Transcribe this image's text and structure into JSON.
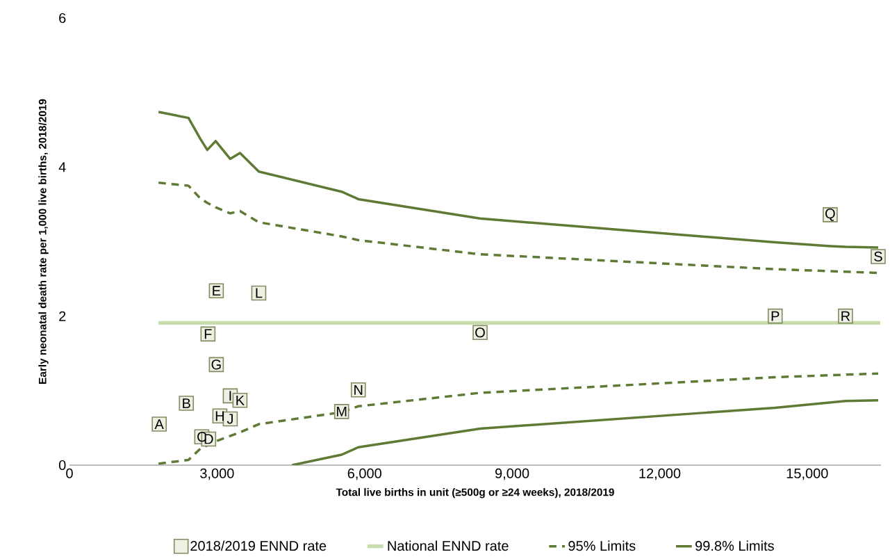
{
  "chart_data": {
    "type": "scatter",
    "xlabel": "Total live births in unit (≥500g or ≥24 weeks), 2018/2019",
    "ylabel": "Early neonatal death rate per 1,000 live births, 2018/2019",
    "xlim": [
      0,
      16500
    ],
    "ylim": [
      0,
      6
    ],
    "xticks": [
      0,
      {
        "value": 3000,
        "label": "3,000"
      },
      {
        "value": 6000,
        "label": "6,000"
      },
      {
        "value": 9000,
        "label": "9,000"
      },
      {
        "value": 12000,
        "label": "12,000"
      },
      {
        "value": 15000,
        "label": "15,000"
      }
    ],
    "yticks": [
      0,
      2,
      4,
      6
    ],
    "grid": false,
    "legend": "bottom",
    "series": [
      {
        "name": "2018/2019 ENND rate",
        "marker": "square",
        "color": "#eef0e4",
        "x": [
          1825,
          2377,
          2689,
          2830,
          2986,
          2816,
          2986,
          3057,
          3269,
          3269,
          3467,
          3849,
          5533,
          5873,
          8349,
          14349,
          15467,
          15778,
          16443
        ],
        "values": [
          0.55,
          0.83,
          0.38,
          0.35,
          2.34,
          1.76,
          1.35,
          0.66,
          0.93,
          0.62,
          0.87,
          2.31,
          0.72,
          1.01,
          1.78,
          2.0,
          3.36,
          2.0,
          2.8
        ]
      },
      {
        "name": "National ENND  rate",
        "type": "line",
        "line_style": "solid",
        "color": "#c6dcad",
        "x": [
          1811,
          16485
        ],
        "values": [
          1.91,
          1.91
        ]
      },
      {
        "name": "95% Limits",
        "type": "line",
        "line_style": "dashed",
        "color": "#5f7a35",
        "x": [
          1811,
          2420,
          2660,
          2802,
          2972,
          3269,
          3467,
          3849,
          5533,
          5873,
          8349,
          14349,
          16443
        ],
        "values": [
          3.79,
          3.75,
          3.58,
          3.52,
          3.46,
          3.38,
          3.41,
          3.26,
          3.07,
          3.02,
          2.83,
          2.63,
          2.58
        ]
      },
      {
        "type": "line",
        "line_style": "dashed",
        "color": "#5f7a35",
        "x": [
          1811,
          2420,
          2660,
          2972,
          3467,
          3849,
          5533,
          5873,
          8349,
          14349,
          16443
        ],
        "values": [
          0.02,
          0.07,
          0.22,
          0.32,
          0.44,
          0.55,
          0.71,
          0.79,
          0.97,
          1.18,
          1.23
        ]
      },
      {
        "name": "99.8% Limits",
        "type": "line",
        "line_style": "solid",
        "color": "#5f7a35",
        "x": [
          1811,
          2420,
          2660,
          2802,
          2972,
          3269,
          3467,
          3849,
          5533,
          5873,
          8349,
          14349,
          15467,
          15778,
          16443
        ],
        "values": [
          4.74,
          4.66,
          4.38,
          4.23,
          4.35,
          4.11,
          4.19,
          3.94,
          3.67,
          3.57,
          3.31,
          2.99,
          2.94,
          2.93,
          2.92
        ]
      },
      {
        "type": "line",
        "line_style": "solid",
        "color": "#5f7a35",
        "x": [
          4527,
          5533,
          5873,
          8349,
          14349,
          15778,
          16443
        ],
        "values": [
          0.0,
          0.14,
          0.24,
          0.49,
          0.77,
          0.86,
          0.87
        ]
      }
    ],
    "annotations": [
      {
        "text": "A",
        "x": 1825,
        "y": 0.55
      },
      {
        "text": "B",
        "x": 2377,
        "y": 0.83
      },
      {
        "text": "C",
        "x": 2689,
        "y": 0.38
      },
      {
        "text": "D",
        "x": 2830,
        "y": 0.35
      },
      {
        "text": "E",
        "x": 2986,
        "y": 2.34
      },
      {
        "text": "F",
        "x": 2816,
        "y": 1.76
      },
      {
        "text": "G",
        "x": 2986,
        "y": 1.35
      },
      {
        "text": "H",
        "x": 3057,
        "y": 0.66
      },
      {
        "text": "I",
        "x": 3269,
        "y": 0.93
      },
      {
        "text": "J",
        "x": 3269,
        "y": 0.62
      },
      {
        "text": "K",
        "x": 3467,
        "y": 0.87
      },
      {
        "text": "L",
        "x": 3849,
        "y": 2.31
      },
      {
        "text": "M",
        "x": 5533,
        "y": 0.72
      },
      {
        "text": "N",
        "x": 5873,
        "y": 1.01
      },
      {
        "text": "O",
        "x": 8349,
        "y": 1.78
      },
      {
        "text": "P",
        "x": 14349,
        "y": 2.0
      },
      {
        "text": "Q",
        "x": 15467,
        "y": 3.36
      },
      {
        "text": "R",
        "x": 15778,
        "y": 2.0
      },
      {
        "text": "S",
        "x": 16443,
        "y": 2.8
      }
    ]
  }
}
